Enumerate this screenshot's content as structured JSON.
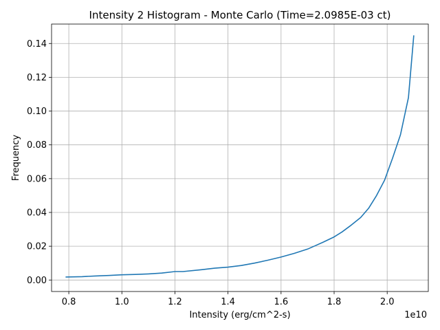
{
  "chart_data": {
    "type": "line",
    "title": "Intensity 2 Histogram - Monte Carlo (Time=2.0985E-03 ct)",
    "xlabel": "Intensity (erg/cm^2-s)",
    "ylabel": "Frequency",
    "x_offset_label": "1e10",
    "xlim": [
      0.735,
      2.155
    ],
    "ylim": [
      -0.0068,
      0.1515
    ],
    "grid": true,
    "xticks": [
      0.8,
      1.0,
      1.2,
      1.4,
      1.6,
      1.8,
      2.0
    ],
    "xtick_labels": [
      "0.8",
      "1.0",
      "1.2",
      "1.4",
      "1.6",
      "1.8",
      "2.0"
    ],
    "yticks": [
      0.0,
      0.02,
      0.04,
      0.06,
      0.08,
      0.1,
      0.12,
      0.14
    ],
    "ytick_labels": [
      "0.00",
      "0.02",
      "0.04",
      "0.06",
      "0.08",
      "0.10",
      "0.12",
      "0.14"
    ],
    "series": [
      {
        "color": "#1f77b4",
        "x": [
          0.79,
          0.85,
          0.9,
          0.95,
          1.0,
          1.05,
          1.1,
          1.15,
          1.2,
          1.23,
          1.3,
          1.35,
          1.4,
          1.45,
          1.5,
          1.55,
          1.6,
          1.65,
          1.7,
          1.73,
          1.76,
          1.8,
          1.83,
          1.86,
          1.9,
          1.93,
          1.96,
          1.99,
          2.02,
          2.05,
          2.08,
          2.1
        ],
        "y": [
          0.0018,
          0.002,
          0.0024,
          0.0027,
          0.0031,
          0.0033,
          0.0036,
          0.0041,
          0.005,
          0.005,
          0.0061,
          0.007,
          0.0076,
          0.0086,
          0.01,
          0.0117,
          0.0136,
          0.0158,
          0.0183,
          0.0204,
          0.0225,
          0.0255,
          0.0285,
          0.032,
          0.037,
          0.0425,
          0.05,
          0.059,
          0.072,
          0.086,
          0.108,
          0.1445
        ]
      }
    ]
  }
}
